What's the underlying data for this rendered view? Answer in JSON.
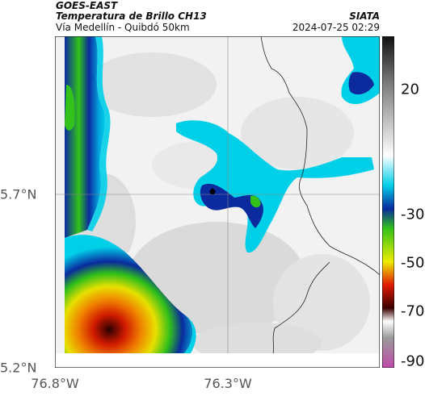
{
  "header": {
    "satellite": "GOES-EAST",
    "product": "Temperatura de Brillo CH13",
    "region": "Vía Medellín - Quibdó 50km",
    "source": "SIATA",
    "datetime": "2024-07-25 02:29"
  },
  "map": {
    "type": "satellite-brightness-temperature",
    "lon_ticks": [
      "76.8°W",
      "76.3°W"
    ],
    "lat_ticks": [
      "5.7°N",
      "5.2°N"
    ],
    "gridlines": true,
    "marker_icon": "location-marker-icon"
  },
  "colorbar": {
    "ticks": [
      "20",
      "-30",
      "-50",
      "-70",
      "-90"
    ],
    "colors": {
      "warm": "#e8e8e8",
      "cyan": "#00cfe8",
      "blue": "#0a2a9e",
      "green": "#33c21a",
      "yellow": "#ecec00",
      "red": "#e01b00",
      "dark": "#3a0000",
      "magenta": "#c04aa8"
    }
  }
}
